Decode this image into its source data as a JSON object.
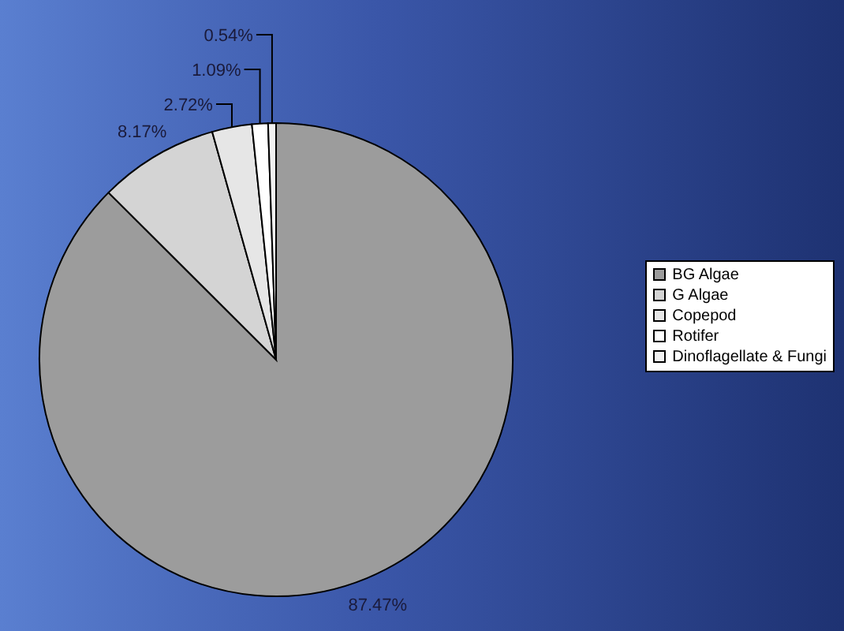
{
  "chart_data": {
    "type": "pie",
    "categories": [
      "BG Algae",
      "G Algae",
      "Copepod",
      "Rotifer",
      "Dinoflagellate & Fungi"
    ],
    "values": [
      87.47,
      8.17,
      2.72,
      1.09,
      0.54
    ],
    "colors": [
      "#9c9c9c",
      "#d4d4d4",
      "#e6e6e6",
      "#ffffff",
      "#f2f2f2"
    ],
    "value_labels": [
      "87.47%",
      "8.17%",
      "2.72%",
      "1.09%",
      "0.54%"
    ],
    "legend": "right"
  }
}
